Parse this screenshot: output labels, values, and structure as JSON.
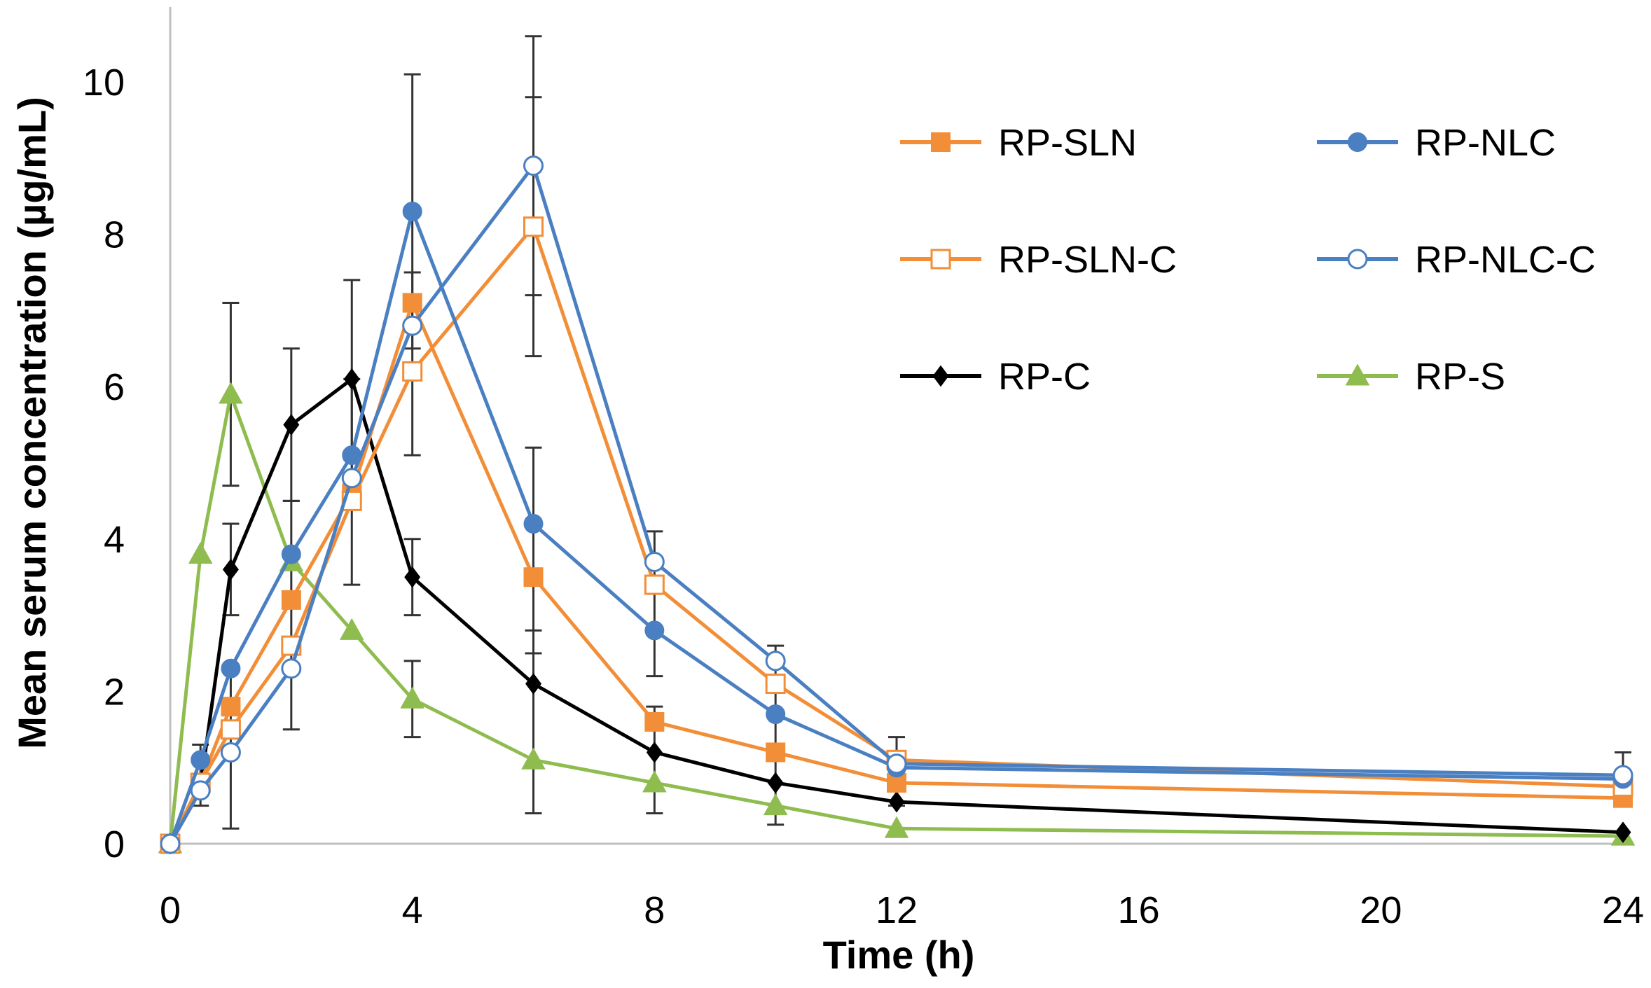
{
  "chart_data": {
    "type": "line",
    "title": "",
    "xlabel": "Time (h)",
    "ylabel": "Mean serum concentration (µg/mL)",
    "xlim": [
      0,
      24
    ],
    "ylim": [
      0,
      10.5
    ],
    "xticks": [
      0,
      4,
      8,
      12,
      16,
      20,
      24
    ],
    "yticks": [
      0,
      2,
      4,
      6,
      8,
      10
    ],
    "grid": false,
    "legend_position": "top-right",
    "x": [
      0,
      0.5,
      1,
      2,
      3,
      4,
      6,
      8,
      10,
      12,
      24
    ],
    "series": [
      {
        "name": "RP-SLN",
        "color": "#f28e37",
        "marker": "square-filled",
        "values": [
          0,
          0.8,
          1.8,
          3.2,
          4.6,
          7.1,
          3.5,
          1.6,
          1.2,
          0.8,
          0.6
        ],
        "errors": [
          0,
          0,
          0,
          0,
          0,
          0,
          0,
          0,
          0,
          0,
          0
        ]
      },
      {
        "name": "RP-NLC",
        "color": "#4a7fc1",
        "marker": "circle-filled",
        "values": [
          0,
          1.1,
          2.3,
          3.8,
          5.1,
          8.3,
          4.2,
          2.8,
          1.7,
          1.0,
          0.85
        ],
        "errors": [
          0,
          0,
          0,
          0,
          0,
          1.8,
          1.0,
          0,
          0,
          0,
          0
        ]
      },
      {
        "name": "RP-SLN-C",
        "color": "#f28e37",
        "marker": "square-open",
        "values": [
          0,
          0.8,
          1.5,
          2.6,
          4.5,
          6.2,
          8.1,
          3.4,
          2.1,
          1.1,
          0.75
        ],
        "errors": [
          0,
          0,
          0,
          0,
          0,
          0,
          1.7,
          0,
          0,
          0,
          0
        ]
      },
      {
        "name": "RP-NLC-C",
        "color": "#4a7fc1",
        "marker": "circle-open",
        "values": [
          0,
          0.7,
          1.2,
          2.3,
          4.8,
          6.8,
          8.9,
          3.7,
          2.4,
          1.05,
          0.9
        ],
        "errors": [
          0,
          0,
          0,
          0,
          0,
          0,
          1.7,
          0,
          0,
          0,
          0.2
        ]
      },
      {
        "name": "RP-C",
        "color": "#000000",
        "marker": "diamond-filled",
        "values": [
          0,
          0.75,
          3.6,
          5.5,
          6.1,
          3.5,
          2.1,
          1.2,
          0.8,
          0.55,
          0.15
        ],
        "errors": [
          0,
          0,
          0,
          1.0,
          1.3,
          0,
          0,
          0,
          0,
          0,
          0
        ]
      },
      {
        "name": "RP-S",
        "color": "#8fbc4f",
        "marker": "triangle-filled",
        "values": [
          0,
          3.8,
          5.9,
          3.7,
          2.8,
          1.9,
          1.1,
          0.8,
          0.5,
          0.2,
          0.1
        ],
        "errors": [
          0,
          0,
          1.2,
          0,
          0,
          0,
          0,
          0,
          0,
          0,
          0
        ]
      }
    ],
    "error_bars": [
      {
        "x": 0.5,
        "low": 0.5,
        "high": 1.3
      },
      {
        "x": 1,
        "low": 0.2,
        "high": 2.3
      },
      {
        "x": 1,
        "low": 3.0,
        "high": 4.2
      },
      {
        "x": 1,
        "low": 4.7,
        "high": 7.1
      },
      {
        "x": 2,
        "low": 1.5,
        "high": 4.5
      },
      {
        "x": 2,
        "low": 4.5,
        "high": 6.5
      },
      {
        "x": 3,
        "low": 3.4,
        "high": 6.1
      },
      {
        "x": 3,
        "low": 4.8,
        "high": 7.4
      },
      {
        "x": 4,
        "low": 1.4,
        "high": 2.4
      },
      {
        "x": 4,
        "low": 3.0,
        "high": 4.0
      },
      {
        "x": 4,
        "low": 5.1,
        "high": 7.5
      },
      {
        "x": 4,
        "low": 6.5,
        "high": 10.1
      },
      {
        "x": 6,
        "low": 0.4,
        "high": 2.8
      },
      {
        "x": 6,
        "low": 2.5,
        "high": 5.2
      },
      {
        "x": 6,
        "low": 6.4,
        "high": 9.8
      },
      {
        "x": 6,
        "low": 7.2,
        "high": 10.6
      },
      {
        "x": 8,
        "low": 0.4,
        "high": 1.8
      },
      {
        "x": 8,
        "low": 2.2,
        "high": 4.1
      },
      {
        "x": 10,
        "low": 0.25,
        "high": 2.6
      },
      {
        "x": 12,
        "low": 0.5,
        "high": 1.4
      },
      {
        "x": 24,
        "low": 0.7,
        "high": 1.2
      }
    ]
  }
}
